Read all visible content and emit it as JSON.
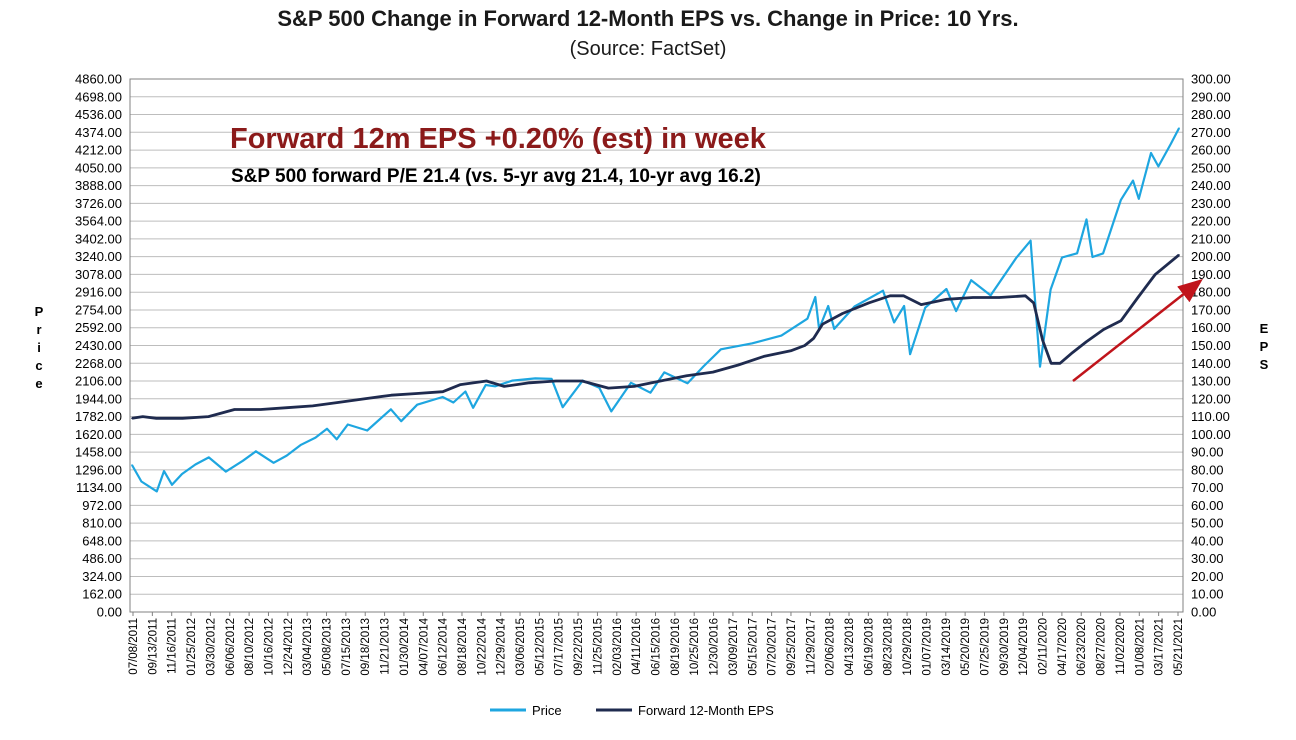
{
  "chart_data": {
    "type": "line",
    "title": "S&P 500 Change in Forward 12-Month EPS vs. Change in Price: 10 Yrs.",
    "subtitle": "(Source: FactSet)",
    "ylabel_left": "Price",
    "ylabel_right": "EPS",
    "ylim_left": [
      0,
      4860
    ],
    "ylim_right": [
      0,
      300
    ],
    "yticks_left": [
      "4860.00",
      "4698.00",
      "4536.00",
      "4374.00",
      "4212.00",
      "4050.00",
      "3888.00",
      "3726.00",
      "3564.00",
      "3402.00",
      "3240.00",
      "3078.00",
      "2916.00",
      "2754.00",
      "2592.00",
      "2430.00",
      "2268.00",
      "2106.00",
      "1944.00",
      "1782.00",
      "1620.00",
      "1458.00",
      "1296.00",
      "1134.00",
      "972.00",
      "810.00",
      "648.00",
      "486.00",
      "324.00",
      "162.00",
      "0.00"
    ],
    "yticks_right": [
      "300.00",
      "290.00",
      "280.00",
      "270.00",
      "260.00",
      "250.00",
      "240.00",
      "230.00",
      "220.00",
      "210.00",
      "200.00",
      "190.00",
      "180.00",
      "170.00",
      "160.00",
      "150.00",
      "140.00",
      "130.00",
      "120.00",
      "110.00",
      "100.00",
      "90.00",
      "80.00",
      "70.00",
      "60.00",
      "50.00",
      "40.00",
      "30.00",
      "20.00",
      "10.00",
      "0.00"
    ],
    "xticks": [
      "07/08/2011",
      "09/13/2011",
      "11/16/2011",
      "01/25/2012",
      "03/30/2012",
      "06/06/2012",
      "08/10/2012",
      "10/16/2012",
      "12/24/2012",
      "03/04/2013",
      "05/08/2013",
      "07/15/2013",
      "09/18/2013",
      "11/21/2013",
      "01/30/2014",
      "04/07/2014",
      "06/12/2014",
      "08/18/2014",
      "10/22/2014",
      "12/29/2014",
      "03/06/2015",
      "05/12/2015",
      "07/17/2015",
      "09/22/2015",
      "11/25/2015",
      "02/03/2016",
      "04/11/2016",
      "06/15/2016",
      "08/19/2016",
      "10/25/2016",
      "12/30/2016",
      "03/09/2017",
      "05/15/2017",
      "07/20/2017",
      "09/25/2017",
      "11/29/2017",
      "02/06/2018",
      "04/13/2018",
      "06/19/2018",
      "08/23/2018",
      "10/29/2018",
      "01/07/2019",
      "03/14/2019",
      "05/20/2019",
      "07/25/2019",
      "09/30/2019",
      "12/04/2019",
      "02/11/2020",
      "04/17/2020",
      "06/23/2020",
      "08/27/2020",
      "11/02/2020",
      "01/08/2021",
      "03/17/2021",
      "05/21/2021"
    ],
    "grid": true,
    "legend_position": "bottom",
    "annotations": [
      "Forward 12m EPS +0.20% (est) in week",
      "S&P 500 forward P/E 21.4 (vs. 5-yr avg 21.4, 10-yr avg 16.2)"
    ],
    "series": [
      {
        "name": "Price",
        "axis": "left",
        "color": "#1ea6e0",
        "x": [
          "07/08/2011",
          "08/10/2011",
          "10/03/2011",
          "10/28/2011",
          "11/25/2011",
          "12/30/2011",
          "02/15/2012",
          "04/02/2012",
          "06/01/2012",
          "07/31/2012",
          "09/14/2012",
          "11/15/2012",
          "12/31/2012",
          "02/19/2013",
          "04/11/2013",
          "05/21/2013",
          "06/24/2013",
          "08/02/2013",
          "10/09/2013",
          "12/31/2013",
          "02/05/2014",
          "04/02/2014",
          "06/30/2014",
          "08/07/2014",
          "09/18/2014",
          "10/15/2014",
          "11/28/2014",
          "12/31/2014",
          "03/02/2015",
          "05/21/2015",
          "07/17/2015",
          "08/25/2015",
          "11/03/2015",
          "12/31/2015",
          "02/11/2016",
          "04/20/2016",
          "06/27/2016",
          "08/15/2016",
          "11/04/2016",
          "12/30/2016",
          "03/01/2017",
          "06/19/2017",
          "09/29/2017",
          "12/29/2017",
          "01/26/2018",
          "02/08/2018",
          "03/12/2018",
          "04/02/2018",
          "06/12/2018",
          "09/20/2018",
          "10/29/2018",
          "12/03/2018",
          "12/24/2018",
          "02/15/2019",
          "04/30/2019",
          "06/03/2019",
          "07/26/2019",
          "10/02/2019",
          "12/31/2019",
          "02/19/2020",
          "03/23/2020",
          "04/29/2020",
          "06/08/2020",
          "07/31/2020",
          "09/02/2020",
          "09/23/2020",
          "10/30/2020",
          "12/31/2020",
          "02/12/2021",
          "03/04/2021",
          "04/16/2021",
          "05/12/2021",
          "06/24/2021",
          "07/23/2021"
        ],
        "values": [
          1340,
          1190,
          1100,
          1285,
          1160,
          1258,
          1345,
          1410,
          1280,
          1380,
          1465,
          1360,
          1426,
          1525,
          1590,
          1670,
          1575,
          1710,
          1655,
          1848,
          1740,
          1890,
          1960,
          1910,
          2011,
          1862,
          2070,
          2058,
          2110,
          2130,
          2125,
          1867,
          2110,
          2044,
          1829,
          2090,
          2000,
          2185,
          2085,
          2239,
          2395,
          2450,
          2520,
          2674,
          2872,
          2580,
          2790,
          2581,
          2786,
          2930,
          2641,
          2790,
          2351,
          2775,
          2945,
          2744,
          3025,
          2887,
          3230,
          3386,
          2237,
          2940,
          3232,
          3271,
          3580,
          3237,
          3270,
          3756,
          3934,
          3768,
          4185,
          4063,
          4266,
          4411
        ]
      },
      {
        "name": "Forward 12-Month EPS",
        "axis": "right",
        "color": "#1f2b4f",
        "x": [
          "07/08/2011",
          "08/15/2011",
          "10/01/2011",
          "01/01/2012",
          "04/01/2012",
          "07/01/2012",
          "10/01/2012",
          "01/01/2013",
          "04/01/2013",
          "07/01/2013",
          "10/01/2013",
          "01/01/2014",
          "04/01/2014",
          "07/01/2014",
          "09/01/2014",
          "12/01/2014",
          "02/01/2015",
          "05/01/2015",
          "08/01/2015",
          "11/01/2015",
          "02/01/2016",
          "05/01/2016",
          "08/01/2016",
          "11/01/2016",
          "02/01/2017",
          "05/01/2017",
          "08/01/2017",
          "11/01/2017",
          "12/20/2017",
          "01/20/2018",
          "02/20/2018",
          "05/01/2018",
          "08/01/2018",
          "10/15/2018",
          "12/01/2018",
          "02/01/2019",
          "05/01/2019",
          "08/01/2019",
          "11/01/2019",
          "02/01/2020",
          "03/01/2020",
          "04/01/2020",
          "05/01/2020",
          "06/01/2020",
          "07/15/2020",
          "09/01/2020",
          "11/01/2020",
          "01/01/2021",
          "03/01/2021",
          "05/01/2021",
          "07/23/2021"
        ],
        "values": [
          109,
          110,
          109,
          109,
          110,
          114,
          114,
          115,
          116,
          118,
          120,
          122,
          123,
          124,
          128,
          130,
          127,
          129,
          130,
          130,
          126,
          127,
          130,
          133,
          135,
          139,
          144,
          147,
          150,
          154,
          162,
          168,
          174,
          178,
          178,
          173,
          176,
          177,
          177,
          178,
          174,
          153,
          140,
          140,
          146,
          152,
          159,
          164,
          177,
          190,
          201
        ]
      }
    ]
  }
}
